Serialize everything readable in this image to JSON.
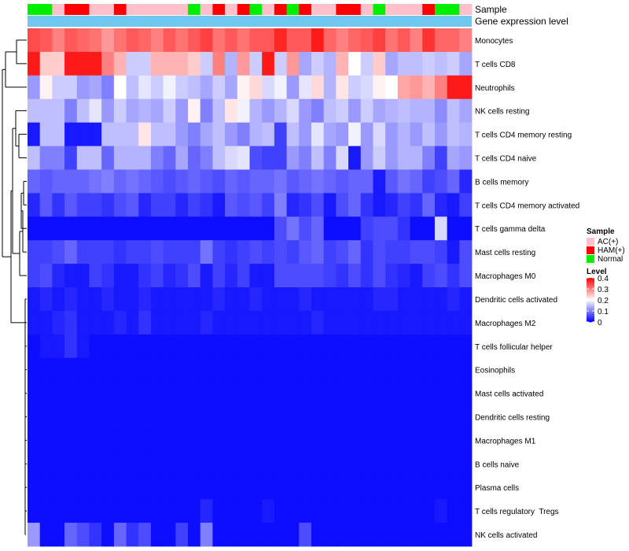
{
  "chart_data": {
    "type": "heatmap",
    "annotation_labels": {
      "sample": "Sample",
      "gene": "Gene expression level"
    },
    "legend": {
      "sample_title": "Sample",
      "sample_levels": [
        {
          "label": "AC(+)",
          "color": "#ffc0cb"
        },
        {
          "label": "HAM(+)",
          "color": "#ff0000"
        },
        {
          "label": "Normal",
          "color": "#00ee00"
        }
      ],
      "level_title": "Level",
      "level_ticks": [
        "0.4",
        "0.3",
        "0.2",
        "0.1",
        "0"
      ],
      "level_range": [
        0,
        0.4
      ]
    },
    "colors": {
      "low": "#0000ff",
      "mid": "#ffffff",
      "high": "#ff0000",
      "gene_bar": "#6ec8f0"
    },
    "sample_groups": [
      "Normal",
      "Normal",
      "AC(+)",
      "HAM(+)",
      "HAM(+)",
      "AC(+)",
      "AC(+)",
      "HAM(+)",
      "AC(+)",
      "AC(+)",
      "AC(+)",
      "AC(+)",
      "AC(+)",
      "Normal",
      "AC(+)",
      "HAM(+)",
      "AC(+)",
      "HAM(+)",
      "Normal",
      "AC(+)",
      "HAM(+)",
      "Normal",
      "HAM(+)",
      "AC(+)",
      "AC(+)",
      "HAM(+)",
      "HAM(+)",
      "AC(+)",
      "Normal",
      "AC(+)",
      "AC(+)",
      "AC(+)",
      "HAM(+)",
      "Normal",
      "Normal",
      "AC(+)"
    ],
    "rows": [
      {
        "label": "Monocytes",
        "values": [
          0.34,
          0.33,
          0.3,
          0.33,
          0.32,
          0.31,
          0.28,
          0.31,
          0.33,
          0.32,
          0.3,
          0.33,
          0.31,
          0.33,
          0.35,
          0.31,
          0.33,
          0.31,
          0.33,
          0.33,
          0.37,
          0.33,
          0.33,
          0.38,
          0.32,
          0.3,
          0.32,
          0.33,
          0.35,
          0.31,
          0.33,
          0.3,
          0.36,
          0.32,
          0.32,
          0.3
        ]
      },
      {
        "label": "T cells CD8",
        "values": [
          0.38,
          0.24,
          0.24,
          0.38,
          0.38,
          0.38,
          0.3,
          0.26,
          0.16,
          0.16,
          0.26,
          0.26,
          0.26,
          0.24,
          0.16,
          0.3,
          0.14,
          0.28,
          0.16,
          0.38,
          0.16,
          0.28,
          0.13,
          0.16,
          0.14,
          0.26,
          0.2,
          0.16,
          0.24,
          0.13,
          0.15,
          0.15,
          0.16,
          0.15,
          0.16,
          0.13
        ]
      },
      {
        "label": "Neutrophils",
        "values": [
          0.12,
          0.21,
          0.16,
          0.16,
          0.12,
          0.13,
          0.1,
          0.2,
          0.15,
          0.18,
          0.16,
          0.19,
          0.16,
          0.15,
          0.13,
          0.16,
          0.13,
          0.21,
          0.23,
          0.17,
          0.19,
          0.12,
          0.18,
          0.23,
          0.14,
          0.22,
          0.16,
          0.17,
          0.21,
          0.2,
          0.27,
          0.28,
          0.26,
          0.3,
          0.38,
          0.38
        ]
      },
      {
        "label": "NK cells resting",
        "values": [
          0.15,
          0.15,
          0.15,
          0.1,
          0.15,
          0.18,
          0.12,
          0.16,
          0.13,
          0.14,
          0.13,
          0.16,
          0.12,
          0.21,
          0.1,
          0.15,
          0.22,
          0.19,
          0.14,
          0.12,
          0.14,
          0.17,
          0.12,
          0.1,
          0.15,
          0.16,
          0.12,
          0.16,
          0.13,
          0.14,
          0.15,
          0.14,
          0.14,
          0.11,
          0.15,
          0.13
        ]
      },
      {
        "label": "T cells CD4 memory resting",
        "values": [
          0.02,
          0.15,
          0.15,
          0.02,
          0.02,
          0.02,
          0.15,
          0.15,
          0.15,
          0.22,
          0.15,
          0.15,
          0.12,
          0.1,
          0.13,
          0.15,
          0.12,
          0.1,
          0.14,
          0.15,
          0.05,
          0.15,
          0.12,
          0.18,
          0.13,
          0.12,
          0.19,
          0.12,
          0.17,
          0.12,
          0.14,
          0.12,
          0.15,
          0.12,
          0.15,
          0.14
        ]
      },
      {
        "label": "T cells CD4 naive",
        "values": [
          0.15,
          0.1,
          0.1,
          0.05,
          0.15,
          0.15,
          0.08,
          0.14,
          0.14,
          0.14,
          0.1,
          0.08,
          0.13,
          0.08,
          0.1,
          0.15,
          0.17,
          0.18,
          0.06,
          0.05,
          0.05,
          0.12,
          0.1,
          0.15,
          0.1,
          0.17,
          0.02,
          0.12,
          0.16,
          0.12,
          0.14,
          0.14,
          0.1,
          0.05,
          0.13,
          0.12
        ]
      },
      {
        "label": "B cells memory",
        "values": [
          0.08,
          0.07,
          0.08,
          0.08,
          0.08,
          0.09,
          0.1,
          0.08,
          0.09,
          0.08,
          0.07,
          0.06,
          0.07,
          0.08,
          0.07,
          0.06,
          0.08,
          0.07,
          0.08,
          0.08,
          0.09,
          0.07,
          0.08,
          0.09,
          0.08,
          0.07,
          0.08,
          0.08,
          0.02,
          0.07,
          0.09,
          0.08,
          0.05,
          0.06,
          0.08,
          0.03
        ]
      },
      {
        "label": "T cells CD4 memory activated",
        "values": [
          0.03,
          0.07,
          0.04,
          0.07,
          0.05,
          0.05,
          0.04,
          0.06,
          0.07,
          0.03,
          0.05,
          0.05,
          0.03,
          0.05,
          0.04,
          0.02,
          0.07,
          0.06,
          0.07,
          0.05,
          0.1,
          0.03,
          0.04,
          0.06,
          0.02,
          0.06,
          0.08,
          0.04,
          0.02,
          0.03,
          0.05,
          0.04,
          0.08,
          0.03,
          0.02,
          0.05
        ]
      },
      {
        "label": "T cells gamma delta",
        "values": [
          0.01,
          0.01,
          0.01,
          0.01,
          0.01,
          0.01,
          0.01,
          0.01,
          0.01,
          0.01,
          0.01,
          0.01,
          0.01,
          0.01,
          0.01,
          0.01,
          0.01,
          0.01,
          0.01,
          0.01,
          0.06,
          0.09,
          0.06,
          0.08,
          0.01,
          0.01,
          0.01,
          0.05,
          0.06,
          0.06,
          0.04,
          0.01,
          0.01,
          0.17,
          0.01,
          0.01
        ]
      },
      {
        "label": "Mast cells resting",
        "values": [
          0.05,
          0.05,
          0.06,
          0.08,
          0.05,
          0.05,
          0.05,
          0.04,
          0.05,
          0.05,
          0.06,
          0.05,
          0.05,
          0.05,
          0.09,
          0.05,
          0.04,
          0.05,
          0.06,
          0.05,
          0.06,
          0.05,
          0.07,
          0.08,
          0.05,
          0.06,
          0.08,
          0.04,
          0.06,
          0.05,
          0.05,
          0.06,
          0.06,
          0.05,
          0.02,
          0.06
        ]
      },
      {
        "label": "Macrophages M0",
        "values": [
          0.05,
          0.06,
          0.03,
          0.02,
          0.02,
          0.05,
          0.04,
          0.02,
          0.02,
          0.04,
          0.05,
          0.03,
          0.04,
          0.06,
          0.02,
          0.05,
          0.03,
          0.05,
          0.02,
          0.02,
          0.06,
          0.06,
          0.06,
          0.06,
          0.05,
          0.04,
          0.06,
          0.04,
          0.06,
          0.04,
          0.03,
          0.02,
          0.05,
          0.06,
          0.04,
          0.06
        ]
      },
      {
        "label": "Dendritic cells activated",
        "values": [
          0.02,
          0.03,
          0.02,
          0.03,
          0.02,
          0.02,
          0.03,
          0.02,
          0.02,
          0.03,
          0.02,
          0.02,
          0.02,
          0.02,
          0.02,
          0.03,
          0.02,
          0.02,
          0.03,
          0.02,
          0.02,
          0.02,
          0.03,
          0.02,
          0.02,
          0.02,
          0.02,
          0.02,
          0.03,
          0.03,
          0.02,
          0.02,
          0.02,
          0.02,
          0.03,
          0.02
        ]
      },
      {
        "label": "Macrophages M2",
        "values": [
          0.02,
          0.02,
          0.03,
          0.04,
          0.02,
          0.02,
          0.02,
          0.03,
          0.02,
          0.04,
          0.02,
          0.02,
          0.02,
          0.02,
          0.03,
          0.02,
          0.02,
          0.02,
          0.02,
          0.02,
          0.02,
          0.02,
          0.02,
          0.03,
          0.02,
          0.02,
          0.02,
          0.02,
          0.02,
          0.02,
          0.02,
          0.02,
          0.02,
          0.02,
          0.02,
          0.02
        ]
      },
      {
        "label": "T cells follicular helper",
        "values": [
          0.01,
          0.02,
          0.02,
          0.04,
          0.02,
          0.01,
          0.01,
          0.01,
          0.01,
          0.01,
          0.01,
          0.01,
          0.01,
          0.01,
          0.01,
          0.01,
          0.01,
          0.01,
          0.01,
          0.01,
          0.01,
          0.01,
          0.01,
          0.01,
          0.01,
          0.01,
          0.01,
          0.01,
          0.01,
          0.01,
          0.01,
          0.01,
          0.01,
          0.01,
          0.01,
          0.01
        ]
      },
      {
        "label": "Eosinophils",
        "values": [
          0.01,
          0.01,
          0.01,
          0.01,
          0.01,
          0.01,
          0.01,
          0.01,
          0.01,
          0.01,
          0.01,
          0.01,
          0.01,
          0.01,
          0.01,
          0.01,
          0.01,
          0.01,
          0.01,
          0.01,
          0.01,
          0.01,
          0.01,
          0.01,
          0.01,
          0.01,
          0.01,
          0.01,
          0.01,
          0.01,
          0.01,
          0.01,
          0.01,
          0.01,
          0.01,
          0.01
        ]
      },
      {
        "label": "Mast cells activated",
        "values": [
          0.01,
          0.01,
          0.01,
          0.01,
          0.01,
          0.01,
          0.01,
          0.01,
          0.01,
          0.01,
          0.01,
          0.01,
          0.01,
          0.01,
          0.01,
          0.01,
          0.01,
          0.01,
          0.01,
          0.01,
          0.01,
          0.01,
          0.01,
          0.01,
          0.01,
          0.01,
          0.01,
          0.01,
          0.01,
          0.01,
          0.01,
          0.01,
          0.01,
          0.01,
          0.01,
          0.01
        ]
      },
      {
        "label": "Dendritic cells resting",
        "values": [
          0.01,
          0.01,
          0.01,
          0.01,
          0.01,
          0.01,
          0.01,
          0.01,
          0.01,
          0.01,
          0.01,
          0.01,
          0.01,
          0.01,
          0.01,
          0.01,
          0.01,
          0.01,
          0.01,
          0.01,
          0.01,
          0.01,
          0.01,
          0.01,
          0.01,
          0.01,
          0.01,
          0.01,
          0.01,
          0.01,
          0.01,
          0.01,
          0.01,
          0.01,
          0.01,
          0.01
        ]
      },
      {
        "label": "Macrophages M1",
        "values": [
          0.01,
          0.01,
          0.01,
          0.01,
          0.01,
          0.01,
          0.01,
          0.01,
          0.01,
          0.01,
          0.01,
          0.01,
          0.01,
          0.01,
          0.01,
          0.01,
          0.01,
          0.01,
          0.01,
          0.01,
          0.01,
          0.01,
          0.01,
          0.01,
          0.01,
          0.01,
          0.01,
          0.01,
          0.01,
          0.01,
          0.01,
          0.01,
          0.01,
          0.01,
          0.01,
          0.01
        ]
      },
      {
        "label": "B cells naive",
        "values": [
          0.01,
          0.01,
          0.01,
          0.01,
          0.01,
          0.01,
          0.01,
          0.01,
          0.01,
          0.01,
          0.01,
          0.01,
          0.01,
          0.01,
          0.01,
          0.01,
          0.01,
          0.01,
          0.01,
          0.01,
          0.01,
          0.01,
          0.01,
          0.01,
          0.01,
          0.01,
          0.01,
          0.01,
          0.01,
          0.01,
          0.01,
          0.01,
          0.01,
          0.01,
          0.01,
          0.01
        ]
      },
      {
        "label": "Plasma cells",
        "values": [
          0.01,
          0.01,
          0.01,
          0.01,
          0.01,
          0.01,
          0.01,
          0.01,
          0.01,
          0.01,
          0.01,
          0.01,
          0.01,
          0.01,
          0.01,
          0.01,
          0.01,
          0.01,
          0.01,
          0.01,
          0.01,
          0.01,
          0.01,
          0.01,
          0.01,
          0.01,
          0.01,
          0.01,
          0.01,
          0.01,
          0.01,
          0.01,
          0.01,
          0.01,
          0.01,
          0.01
        ]
      },
      {
        "label": "T cells regulatory  Tregs",
        "values": [
          0.01,
          0.01,
          0.01,
          0.01,
          0.01,
          0.01,
          0.01,
          0.01,
          0.01,
          0.01,
          0.01,
          0.01,
          0.01,
          0.01,
          0.03,
          0.01,
          0.01,
          0.01,
          0.01,
          0.02,
          0.01,
          0.01,
          0.01,
          0.01,
          0.01,
          0.01,
          0.01,
          0.01,
          0.01,
          0.01,
          0.01,
          0.01,
          0.01,
          0.02,
          0.01,
          0.01
        ]
      },
      {
        "label": "NK cells activated",
        "values": [
          0.12,
          0.01,
          0.01,
          0.08,
          0.06,
          0.04,
          0.01,
          0.08,
          0.04,
          0.06,
          0.01,
          0.01,
          0.05,
          0.01,
          0.1,
          0.01,
          0.01,
          0.01,
          0.01,
          0.01,
          0.01,
          0.01,
          0.06,
          0.01,
          0.01,
          0.01,
          0.01,
          0.01,
          0.01,
          0.01,
          0.01,
          0.01,
          0.01,
          0.01,
          0.01,
          0.01
        ]
      }
    ]
  }
}
